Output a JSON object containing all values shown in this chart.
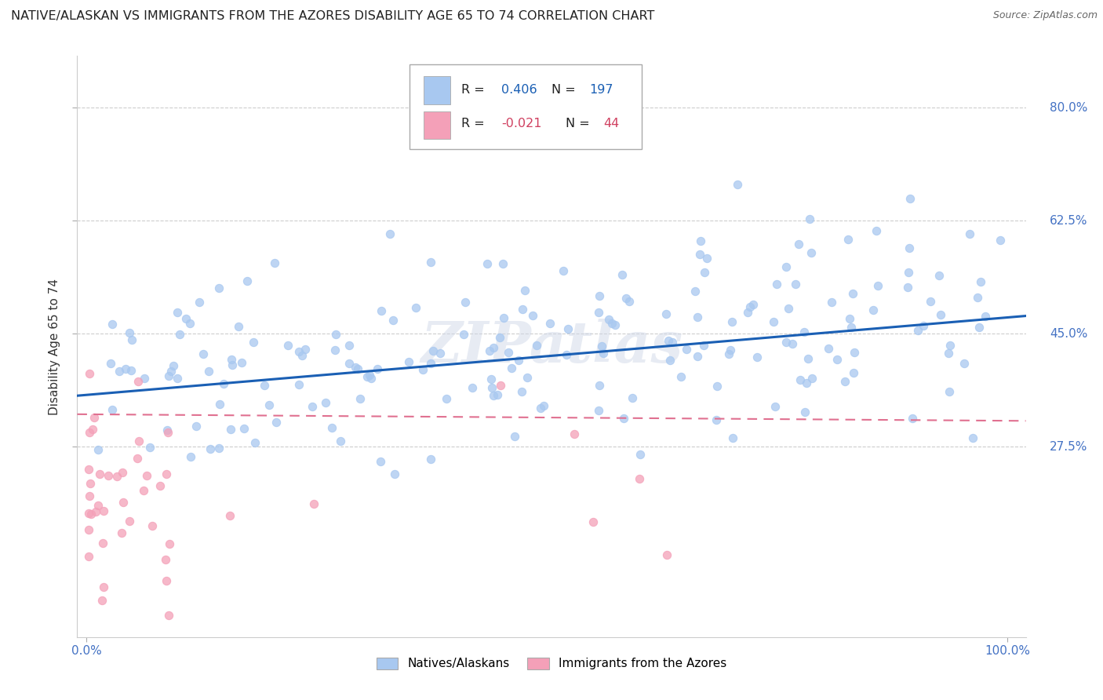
{
  "title": "NATIVE/ALASKAN VS IMMIGRANTS FROM THE AZORES DISABILITY AGE 65 TO 74 CORRELATION CHART",
  "source": "Source: ZipAtlas.com",
  "ylabel": "Disability Age 65 to 74",
  "xlim": [
    -0.01,
    1.02
  ],
  "ylim": [
    -0.02,
    0.88
  ],
  "yticks": [
    0.275,
    0.45,
    0.625,
    0.8
  ],
  "ytick_labels": [
    "27.5%",
    "45.0%",
    "62.5%",
    "80.0%"
  ],
  "xtick_labels": [
    "0.0%",
    "100.0%"
  ],
  "legend_R_native": "0.406",
  "legend_N_native": "197",
  "legend_R_azores": "-0.021",
  "legend_N_azores": "44",
  "native_color": "#a8c8f0",
  "azores_color": "#f4a0b8",
  "trendline_native_color": "#1a5fb4",
  "trendline_azores_color": "#e07090",
  "tick_color": "#4472c4",
  "background_color": "#ffffff",
  "grid_color": "#c8c8c8",
  "watermark": "ZIPatlas"
}
